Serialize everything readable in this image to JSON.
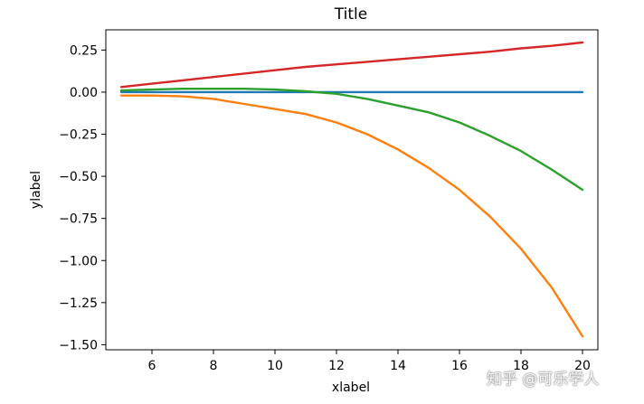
{
  "chart_data": {
    "type": "line",
    "title": "Title",
    "xlabel": "xlabel",
    "ylabel": "ylabel",
    "xlim": [
      4.5,
      20.5
    ],
    "ylim": [
      -1.53,
      0.37
    ],
    "xticks": [
      6,
      8,
      10,
      12,
      14,
      16,
      18,
      20
    ],
    "xtick_labels": [
      "6",
      "8",
      "10",
      "12",
      "14",
      "16",
      "18",
      "20"
    ],
    "yticks": [
      0.25,
      0.0,
      -0.25,
      -0.5,
      -0.75,
      -1.0,
      -1.25,
      -1.5
    ],
    "ytick_labels": [
      "0.25",
      "0.00",
      "−0.25",
      "−0.50",
      "−0.75",
      "−1.00",
      "−1.25",
      "−1.50"
    ],
    "grid": false,
    "legend": "none",
    "x": [
      5,
      6,
      7,
      8,
      9,
      10,
      11,
      12,
      13,
      14,
      15,
      16,
      17,
      18,
      19,
      20
    ],
    "series": [
      {
        "color": "#1f77b4",
        "values": [
          0.0,
          0.0,
          0.0,
          0.0,
          0.0,
          0.0,
          0.0,
          0.0,
          0.0,
          0.0,
          0.0,
          0.0,
          0.0,
          0.0,
          0.0,
          0.0
        ]
      },
      {
        "color": "#ff7f0e",
        "values": [
          -0.02,
          -0.02,
          -0.025,
          -0.04,
          -0.07,
          -0.1,
          -0.13,
          -0.18,
          -0.25,
          -0.34,
          -0.45,
          -0.58,
          -0.74,
          -0.93,
          -1.16,
          -1.45
        ]
      },
      {
        "color": "#2ca02c",
        "values": [
          0.01,
          0.015,
          0.02,
          0.02,
          0.02,
          0.015,
          0.005,
          -0.01,
          -0.04,
          -0.08,
          -0.12,
          -0.18,
          -0.26,
          -0.35,
          -0.46,
          -0.58
        ]
      },
      {
        "color": "#d62728",
        "values": [
          0.03,
          0.05,
          0.07,
          0.09,
          0.11,
          0.13,
          0.15,
          0.165,
          0.18,
          0.195,
          0.21,
          0.225,
          0.24,
          0.26,
          0.275,
          0.295
        ]
      }
    ]
  },
  "watermark": "知乎 @可乐学人"
}
